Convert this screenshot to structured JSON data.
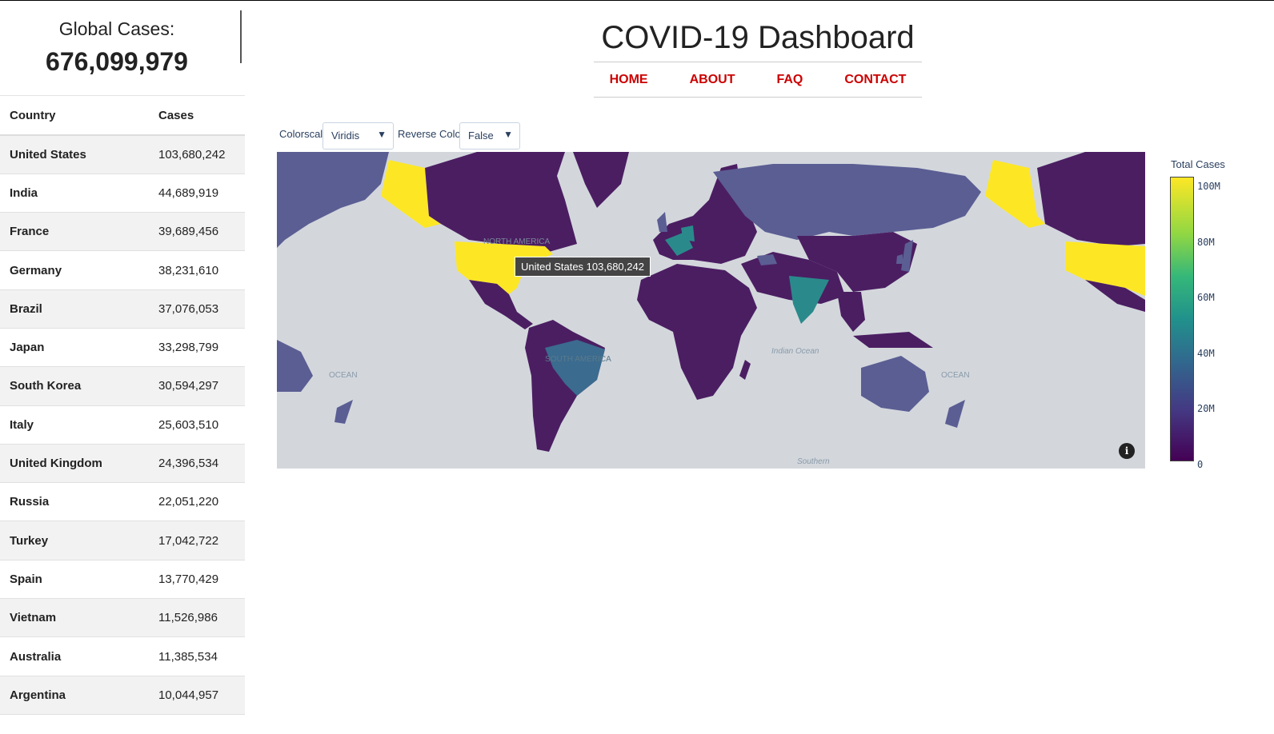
{
  "global": {
    "label": "Global Cases:",
    "value": "676,099,979"
  },
  "table": {
    "headers": {
      "country": "Country",
      "cases": "Cases"
    },
    "rows": [
      {
        "country": "United States",
        "cases": "103,680,242"
      },
      {
        "country": "India",
        "cases": "44,689,919"
      },
      {
        "country": "France",
        "cases": "39,689,456"
      },
      {
        "country": "Germany",
        "cases": "38,231,610"
      },
      {
        "country": "Brazil",
        "cases": "37,076,053"
      },
      {
        "country": "Japan",
        "cases": "33,298,799"
      },
      {
        "country": "South Korea",
        "cases": "30,594,297"
      },
      {
        "country": "Italy",
        "cases": "25,603,510"
      },
      {
        "country": "United Kingdom",
        "cases": "24,396,534"
      },
      {
        "country": "Russia",
        "cases": "22,051,220"
      },
      {
        "country": "Turkey",
        "cases": "17,042,722"
      },
      {
        "country": "Spain",
        "cases": "13,770,429"
      },
      {
        "country": "Vietnam",
        "cases": "11,526,986"
      },
      {
        "country": "Australia",
        "cases": "11,385,534"
      },
      {
        "country": "Argentina",
        "cases": "10,044,957"
      }
    ]
  },
  "header": {
    "title": "COVID-19 Dashboard"
  },
  "nav": {
    "home": "HOME",
    "about": "ABOUT",
    "faq": "FAQ",
    "contact": "CONTACT"
  },
  "controls": {
    "colorscale_label": "Colorscale:",
    "colorscale_value": "Viridis",
    "reverse_label": "Reverse Colorscale:",
    "reverse_value": "False"
  },
  "map": {
    "labels": {
      "north_america": "NORTH AMERICA",
      "south_america": "SOUTH AMERICA",
      "indian_ocean": "Indian Ocean",
      "ocean": "OCEAN",
      "southern": "Southern"
    },
    "tooltip": "United States 103,680,242",
    "info_glyph": "i",
    "colors": {
      "ocean": "#d3d7dc",
      "usa": "#fde725",
      "india": "#2a8a8b",
      "brazil": "#3b6b8f",
      "russia": "#5b5e93",
      "dark": "#4b1e62"
    }
  },
  "colorbar": {
    "title": "Total Cases",
    "ticks": [
      "100M",
      "80M",
      "60M",
      "40M",
      "20M",
      "0"
    ]
  }
}
